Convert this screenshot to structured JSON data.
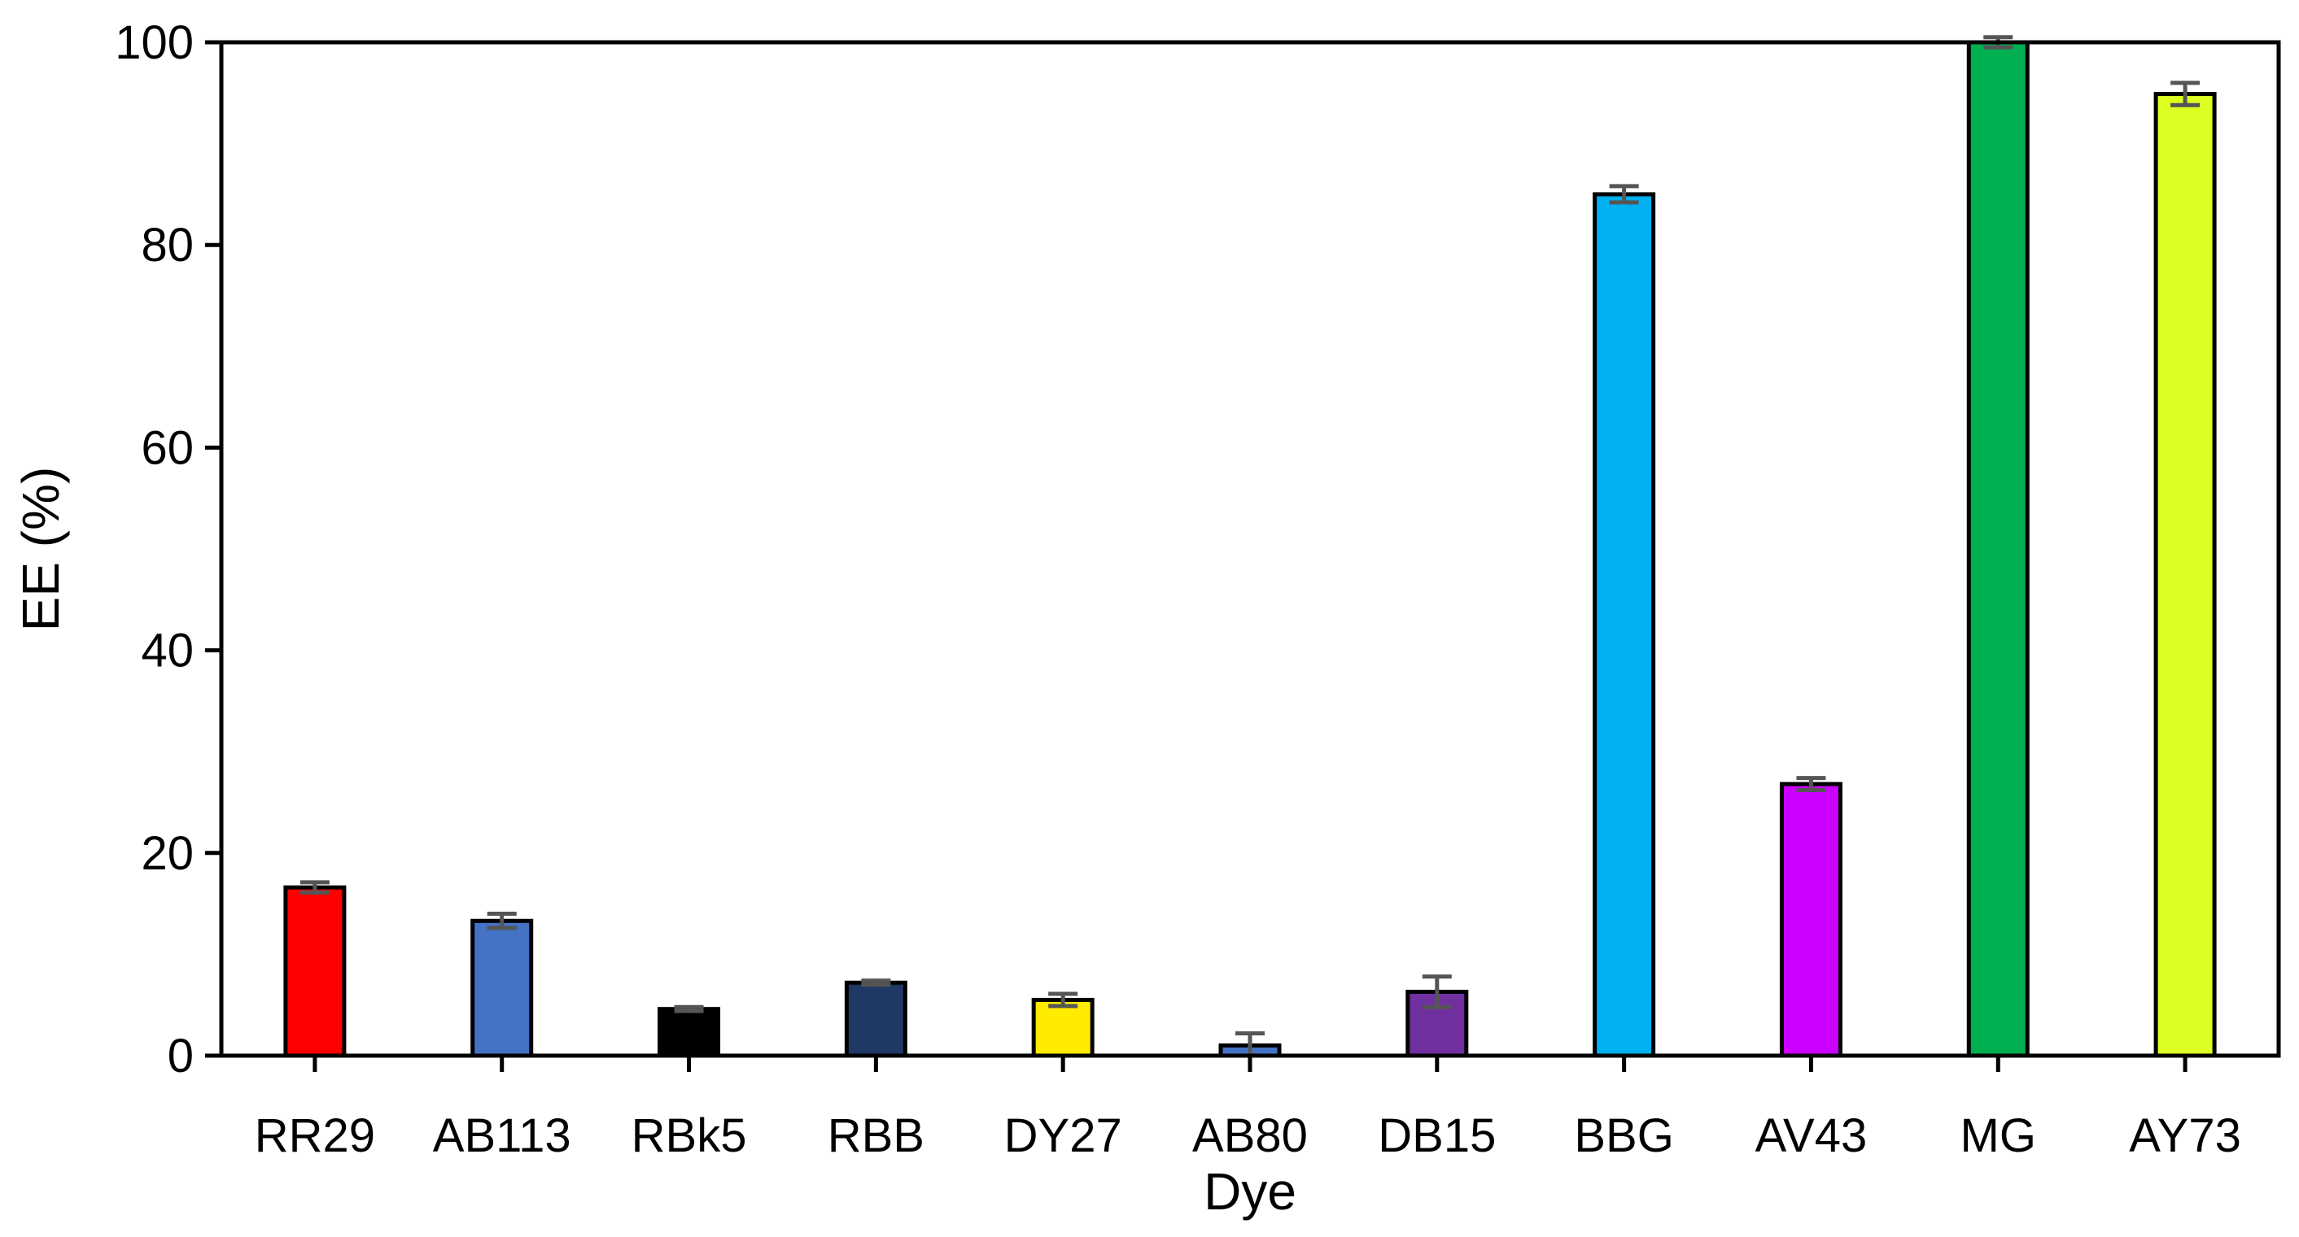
{
  "chart_data": {
    "type": "bar",
    "xlabel": "Dye",
    "ylabel": "EE (%)",
    "ylim": [
      0,
      100
    ],
    "yticks": [
      0,
      20,
      40,
      60,
      80,
      100
    ],
    "grid": false,
    "legend": "none",
    "categories": [
      "RR29",
      "AB113",
      "RBk5",
      "RBB",
      "DY27",
      "AB80",
      "DB15",
      "BBG",
      "AV43",
      "MG",
      "AY73"
    ],
    "values": [
      16.6,
      13.3,
      4.6,
      7.2,
      5.5,
      1.0,
      6.3,
      85.0,
      26.8,
      100.0,
      94.9
    ],
    "errors": [
      0.5,
      0.7,
      0.2,
      0.2,
      0.6,
      1.2,
      1.5,
      0.8,
      0.6,
      0.5,
      1.1
    ],
    "colors": [
      "#FF0000",
      "#4472C4",
      "#000000",
      "#1F3864",
      "#FFEB00",
      "#4472C4",
      "#7030A0",
      "#00B0F0",
      "#CC00FF",
      "#00B050",
      "#DDFF22"
    ]
  }
}
